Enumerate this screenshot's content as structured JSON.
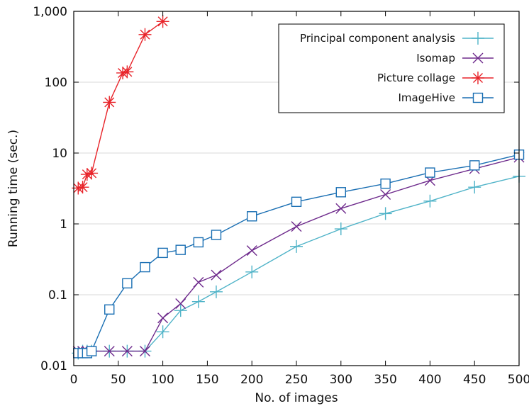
{
  "chart_data": {
    "type": "line",
    "title": "",
    "xlabel": "No. of images",
    "ylabel": "Running time (sec.)",
    "xlim": [
      0,
      500
    ],
    "ylim": [
      0.01,
      1000
    ],
    "yscale": "log",
    "grid": "horizontal major lines only",
    "legend_position": "top-right",
    "x_ticks": [
      0,
      50,
      100,
      150,
      200,
      250,
      300,
      350,
      400,
      450,
      500
    ],
    "x_tick_labels": [
      "0",
      "50",
      "100",
      "150",
      "200",
      "250",
      "300",
      "350",
      "400",
      "450",
      "500"
    ],
    "y_ticks": [
      0.01,
      0.1,
      1,
      10,
      100,
      1000
    ],
    "y_tick_labels": [
      "0.01",
      "0.1",
      "1",
      "10",
      "100",
      "1,000"
    ],
    "series": [
      {
        "name": "Principal component analysis",
        "color": "#4fb3c8",
        "marker": "plus",
        "x": [
          5,
          10,
          15,
          20,
          40,
          60,
          80,
          100,
          120,
          140,
          160,
          200,
          250,
          300,
          350,
          400,
          450,
          500
        ],
        "y": [
          0.015,
          0.016,
          0.016,
          0.016,
          0.016,
          0.016,
          0.016,
          0.03,
          0.06,
          0.08,
          0.11,
          0.21,
          0.48,
          0.85,
          1.4,
          2.1,
          3.3,
          4.7
        ]
      },
      {
        "name": "Isomap",
        "color": "#6e2a8c",
        "marker": "cross",
        "x": [
          5,
          10,
          15,
          20,
          40,
          60,
          80,
          100,
          120,
          140,
          160,
          200,
          250,
          300,
          350,
          400,
          450,
          500
        ],
        "y": [
          0.016,
          0.016,
          0.016,
          0.016,
          0.016,
          0.016,
          0.016,
          0.047,
          0.075,
          0.15,
          0.19,
          0.42,
          0.92,
          1.65,
          2.6,
          4.1,
          6.0,
          8.7
        ]
      },
      {
        "name": "Picture collage",
        "color": "#e8242a",
        "marker": "asterisk",
        "x": [
          5,
          10,
          15,
          20,
          40,
          55,
          60,
          80,
          100
        ],
        "y": [
          3.2,
          3.3,
          5.0,
          5.2,
          52,
          135,
          140,
          470,
          720
        ]
      },
      {
        "name": "ImageHive",
        "color": "#1a6fb3",
        "marker": "square",
        "x": [
          5,
          10,
          15,
          20,
          40,
          60,
          80,
          100,
          120,
          140,
          160,
          200,
          250,
          300,
          350,
          400,
          450,
          500
        ],
        "y": [
          0.015,
          0.015,
          0.015,
          0.016,
          0.062,
          0.145,
          0.245,
          0.39,
          0.43,
          0.55,
          0.7,
          1.28,
          2.05,
          2.8,
          3.7,
          5.3,
          6.7,
          9.5
        ]
      }
    ]
  }
}
